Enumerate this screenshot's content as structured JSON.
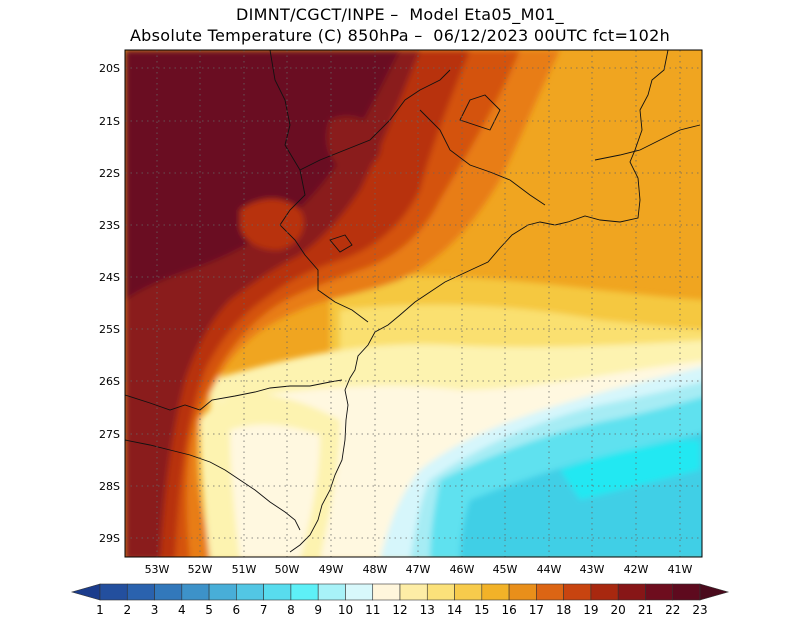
{
  "title": {
    "line1": "DIMNT/CGCT/INPE –  Model Eta05_M01_",
    "line2": "Absolute Temperature (C) 850hPa –  06/12/2023 00UTC fct=102h"
  },
  "map": {
    "lat_labels": [
      "20S",
      "21S",
      "22S",
      "23S",
      "24S",
      "25S",
      "26S",
      "27S",
      "28S",
      "29S"
    ],
    "lon_labels": [
      "53W",
      "52W",
      "51W",
      "50W",
      "49W",
      "48W",
      "47W",
      "46W",
      "45W",
      "44W",
      "43W",
      "42W",
      "41W"
    ],
    "grid": "dotted",
    "fields": {
      "hot_core": "#6b0a22",
      "very_hot": "#8a1a1a",
      "hot": "#b83210",
      "warm_orange": "#d4520c",
      "orange": "#e87d18",
      "amber": "#f0a520",
      "gold": "#f5c840",
      "yellow": "#fae070",
      "pale_yellow": "#fdf3b0",
      "cream": "#fff8e0",
      "pale_cyan": "#d6f6fb",
      "light_cyan": "#a6ecf4",
      "cyan": "#5ee1ef",
      "deep_cyan": "#40cfe6",
      "aqua": "#22e8f2"
    }
  },
  "colorbar": {
    "labels": [
      "1",
      "2",
      "3",
      "4",
      "5",
      "6",
      "7",
      "8",
      "9",
      "10",
      "11",
      "12",
      "13",
      "14",
      "15",
      "16",
      "17",
      "18",
      "19",
      "20",
      "21",
      "22",
      "23"
    ],
    "colors": [
      "#1b3c8c",
      "#234f9e",
      "#2a62ae",
      "#3278bb",
      "#3d92c9",
      "#48aed8",
      "#52c6e4",
      "#58dcee",
      "#5ef0f7",
      "#a8f2f8",
      "#d8f8fb",
      "#fff6dc",
      "#fdeda6",
      "#fbe17a",
      "#f7cb4c",
      "#f2b228",
      "#e98f1a",
      "#dc6514",
      "#c84410",
      "#a8280f",
      "#871617",
      "#6e0d1e",
      "#5e0a1e",
      "#4a0a1c"
    ]
  }
}
